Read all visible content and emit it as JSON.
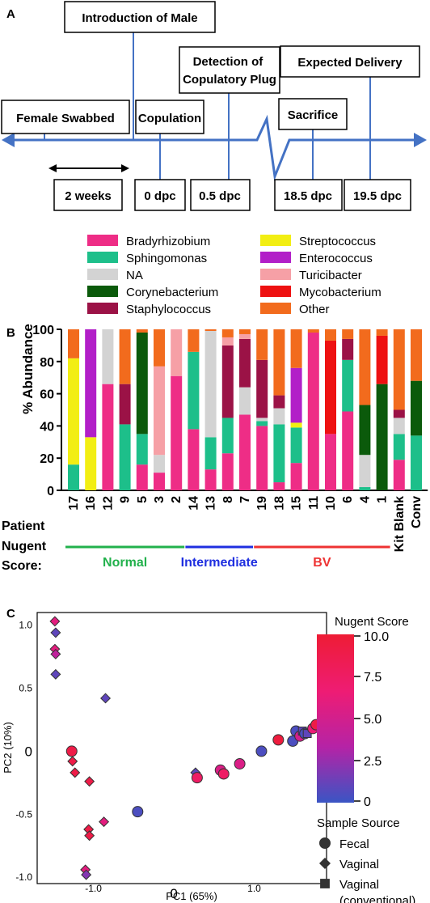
{
  "panels": {
    "a": "A",
    "b": "B",
    "c": "C"
  },
  "timeline": {
    "events": [
      "Introduction of Male",
      "Female Swabbed",
      "Copulation",
      "Detection of Copulatory Plug",
      "Sacrifice",
      "Expected Delivery"
    ],
    "times": [
      "2 weeks",
      "0 dpc",
      "0.5 dpc",
      "18.5 dpc",
      "19.5 dpc"
    ],
    "color": "#4472c4"
  },
  "chart_data": [
    {
      "type": "bar",
      "stacked": true,
      "ylabel": "% Abundance",
      "ylim": [
        0,
        100
      ],
      "yticks": [
        0,
        20,
        40,
        60,
        80,
        100
      ],
      "categories": [
        "17",
        "16",
        "12",
        "9",
        "5",
        "3",
        "2",
        "14",
        "13",
        "8",
        "7",
        "19",
        "18",
        "15",
        "11",
        "10",
        "6",
        "4",
        "1",
        "Kit Blank",
        "Conv"
      ],
      "category_title": [
        "Patient",
        "Nugent",
        "Score:"
      ],
      "groups": [
        {
          "name": "Normal",
          "color": "#22b14c"
        },
        {
          "name": "Intermediate",
          "color": "#1f2fe0"
        },
        {
          "name": "BV",
          "color": "#ee3333"
        }
      ],
      "series": [
        {
          "name": "Bradyrhizobium",
          "color": "#ee2d86",
          "values": [
            0,
            0,
            66,
            0,
            16,
            11,
            71,
            38,
            13,
            23,
            47,
            40,
            5,
            17,
            98,
            35,
            49,
            0,
            0,
            19,
            0
          ]
        },
        {
          "name": "Sphingomonas",
          "color": "#1dbf8a",
          "values": [
            16,
            0,
            0,
            41,
            19,
            0,
            0,
            48,
            20,
            22,
            0,
            3,
            36,
            22,
            0,
            0,
            32,
            2,
            0,
            16,
            34
          ]
        },
        {
          "name": "NA",
          "color": "#d3d3d3",
          "values": [
            0,
            0,
            34,
            0,
            0,
            11,
            0,
            0,
            66,
            0,
            17,
            2,
            10,
            0,
            0,
            0,
            0,
            20,
            0,
            10,
            0
          ]
        },
        {
          "name": "Corynebacterium",
          "color": "#0b5a0b",
          "values": [
            0,
            0,
            0,
            0,
            63,
            0,
            0,
            0,
            0,
            0,
            0,
            0,
            0,
            0,
            0,
            0,
            0,
            31,
            66,
            0,
            34
          ]
        },
        {
          "name": "Staphylococcus",
          "color": "#9b1246",
          "values": [
            0,
            0,
            0,
            25,
            0,
            0,
            0,
            0,
            0,
            45,
            30,
            36,
            8,
            0,
            0,
            0,
            13,
            0,
            0,
            5,
            0
          ]
        },
        {
          "name": "Streptococcus",
          "color": "#f2ee13",
          "values": [
            66,
            33,
            0,
            0,
            0,
            0,
            0,
            0,
            0,
            0,
            0,
            0,
            0,
            3,
            0,
            0,
            0,
            0,
            0,
            0,
            0
          ]
        },
        {
          "name": "Enterococcus",
          "color": "#b21fc8",
          "values": [
            0,
            67,
            0,
            0,
            0,
            0,
            0,
            0,
            0,
            0,
            0,
            0,
            0,
            34,
            0,
            0,
            0,
            0,
            0,
            0,
            0
          ]
        },
        {
          "name": "Turicibacter",
          "color": "#f6a0a6",
          "values": [
            0,
            0,
            0,
            0,
            0,
            55,
            29,
            0,
            0,
            5,
            3,
            0,
            0,
            0,
            0,
            0,
            0,
            0,
            0,
            0,
            0
          ]
        },
        {
          "name": "Mycobacterium",
          "color": "#ee1111",
          "values": [
            0,
            0,
            0,
            0,
            0,
            0,
            0,
            0,
            0,
            0,
            0,
            0,
            0,
            0,
            0,
            58,
            0,
            0,
            30,
            0,
            0
          ]
        },
        {
          "name": "Other",
          "color": "#f26b1d",
          "values": [
            18,
            0,
            0,
            34,
            2,
            23,
            0,
            14,
            1,
            5,
            3,
            19,
            41,
            24,
            2,
            7,
            6,
            47,
            4,
            50,
            32
          ]
        }
      ]
    },
    {
      "type": "scatter",
      "xlabel": "PC1 (65%)",
      "ylabel": "PC2 (10%)",
      "xlim": [
        -1.7,
        1.9
      ],
      "ylim": [
        -1.05,
        1.1
      ],
      "xticks": [
        -1.0,
        0,
        1.0
      ],
      "xticklabels": [
        "-1.0",
        "0",
        "1.0"
      ],
      "yticks": [
        1.0,
        0.5,
        0,
        -0.5,
        -1.0
      ],
      "yticklabels": [
        "1.0",
        "0.5",
        "0",
        "-0.5",
        "-1.0"
      ],
      "colorbar": {
        "title": "Nugent Score",
        "range": [
          0,
          10
        ],
        "ticks": [
          10.0,
          7.5,
          5.0,
          2.5,
          0
        ],
        "ticklabels": [
          "10.0",
          "7.5",
          "5.0",
          "2.5",
          "0"
        ],
        "stops": [
          "#3a55c4",
          "#b523a6",
          "#ee1c74",
          "#ee1c35"
        ]
      },
      "shape_legend": {
        "title": "Sample Source",
        "entries": [
          {
            "shape": "circle",
            "label": "Fecal"
          },
          {
            "shape": "diamond",
            "label": "Vaginal"
          },
          {
            "shape": "square",
            "label": "Vaginal",
            "label2": "(conventional)"
          }
        ]
      },
      "points": [
        {
          "x": -1.48,
          "y": 1.03,
          "shape": "diamond",
          "score": 6
        },
        {
          "x": -1.47,
          "y": 0.94,
          "shape": "diamond",
          "score": 1
        },
        {
          "x": -1.48,
          "y": 0.81,
          "shape": "diamond",
          "score": 6
        },
        {
          "x": -1.47,
          "y": 0.77,
          "shape": "diamond",
          "score": 4
        },
        {
          "x": -1.47,
          "y": 0.61,
          "shape": "diamond",
          "score": 1
        },
        {
          "x": -0.85,
          "y": 0.42,
          "shape": "diamond",
          "score": 1
        },
        {
          "x": -1.27,
          "y": 0.0,
          "shape": "circle",
          "score": 9
        },
        {
          "x": -1.26,
          "y": -0.08,
          "shape": "diamond",
          "score": 9
        },
        {
          "x": -1.23,
          "y": -0.17,
          "shape": "diamond",
          "score": 9
        },
        {
          "x": -1.05,
          "y": -0.24,
          "shape": "diamond",
          "score": 9
        },
        {
          "x": -0.87,
          "y": -0.56,
          "shape": "diamond",
          "score": 6
        },
        {
          "x": -1.06,
          "y": -0.62,
          "shape": "diamond",
          "score": 9
        },
        {
          "x": -1.05,
          "y": -0.67,
          "shape": "diamond",
          "score": 9
        },
        {
          "x": -1.1,
          "y": -0.94,
          "shape": "diamond",
          "score": 6
        },
        {
          "x": -1.09,
          "y": -0.98,
          "shape": "diamond",
          "score": 2
        },
        {
          "x": -0.45,
          "y": -0.48,
          "shape": "circle",
          "score": 0.5
        },
        {
          "x": 0.27,
          "y": -0.17,
          "shape": "diamond",
          "score": 1
        },
        {
          "x": 0.29,
          "y": -0.21,
          "shape": "circle",
          "score": 7.5
        },
        {
          "x": 0.58,
          "y": -0.15,
          "shape": "circle",
          "score": 5.5
        },
        {
          "x": 0.62,
          "y": -0.18,
          "shape": "circle",
          "score": 7.5
        },
        {
          "x": 0.82,
          "y": -0.1,
          "shape": "circle",
          "score": 5.5
        },
        {
          "x": 1.09,
          "y": 0.0,
          "shape": "circle",
          "score": 0.5
        },
        {
          "x": 1.3,
          "y": 0.09,
          "shape": "circle",
          "score": 9.5
        },
        {
          "x": 1.48,
          "y": 0.08,
          "shape": "circle",
          "score": 0.5
        },
        {
          "x": 1.52,
          "y": 0.16,
          "shape": "circle",
          "score": 0.5
        },
        {
          "x": 1.57,
          "y": 0.12,
          "shape": "circle",
          "score": 5
        },
        {
          "x": 1.6,
          "y": 0.16,
          "shape": "square",
          "score": 1
        },
        {
          "x": 1.63,
          "y": 0.14,
          "shape": "circle",
          "score": 0.5
        },
        {
          "x": 1.66,
          "y": 0.14,
          "shape": "square",
          "score": 1
        },
        {
          "x": 1.73,
          "y": 0.18,
          "shape": "circle",
          "score": 6.5
        },
        {
          "x": 1.77,
          "y": 0.21,
          "shape": "circle",
          "score": 9
        }
      ]
    }
  ]
}
